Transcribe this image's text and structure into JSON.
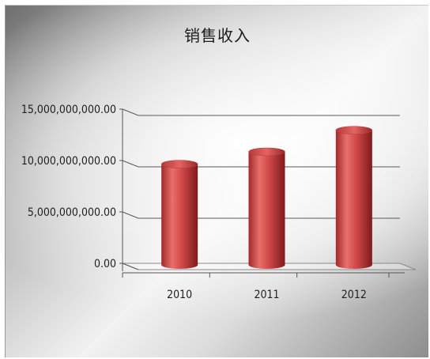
{
  "chart_data": {
    "type": "bar",
    "title": "销售收入",
    "categories": [
      "2010",
      "2011",
      "2012"
    ],
    "values": [
      9800000000,
      11000000000,
      13100000000
    ],
    "xlabel": "",
    "ylabel": "",
    "ylim": [
      0,
      15000000000
    ],
    "yticks": [
      0,
      5000000000,
      10000000000,
      15000000000
    ],
    "ytick_labels": [
      "0.00",
      "5,000,000,000.00",
      "10,000,000,000.00",
      "15,000,000,000.00"
    ],
    "grid": true,
    "legend": "none",
    "style": "3d-cylinder",
    "colors": {
      "bar_dark": "#8f1f20",
      "bar_mid": "#c5393b",
      "bar_light": "#e8706c",
      "gridline": "#5a5a5a",
      "text": "#1e1e1e"
    }
  }
}
